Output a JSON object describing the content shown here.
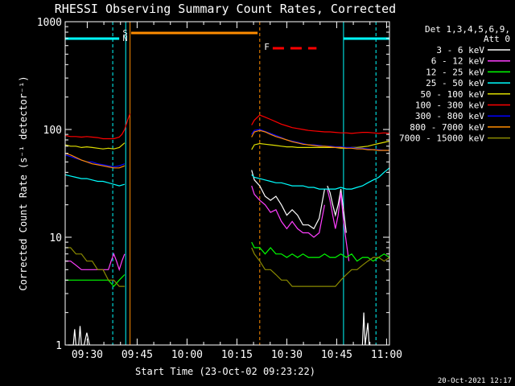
{
  "chart_data": {
    "type": "line",
    "title": "RHESSI Observing Summary Count Rates, Corrected",
    "xlabel": "Start Time (23-Oct-02 09:23:22)",
    "ylabel": "Corrected Count Rate (s⁻¹ detector⁻¹)",
    "footer": "20-Oct-2021 12:17",
    "y_scale": "log",
    "ylim": [
      1,
      1000
    ],
    "xlim_minutes": [
      0,
      60
    ],
    "x_ticks": [
      "09:30",
      "09:45",
      "10:00",
      "10:15",
      "10:30",
      "10:45",
      "11:00"
    ],
    "y_ticks": [
      "1",
      "10",
      "100",
      "1000"
    ],
    "legend": {
      "header_lines": [
        "Det 1,3,4,5,6,9,",
        "Att 0"
      ],
      "position": "right"
    },
    "flags": {
      "saa_label_s": "S",
      "saa_label_n": "N",
      "flare_label": "F"
    },
    "series": [
      {
        "name": "3 - 6 keV",
        "color": "#ffffff",
        "segments": [
          {
            "x": [
              1,
              2,
              3,
              3.5,
              4,
              5,
              5.5,
              6,
              7,
              8,
              9
            ],
            "y": [
              1,
              1,
              1,
              1.4,
              1,
              1,
              1.5,
              1,
              1,
              1.3,
              1
            ]
          },
          {
            "x": [
              69,
              70,
              72,
              74,
              76,
              78,
              80,
              82,
              84,
              86,
              88,
              90,
              92,
              94,
              96
            ],
            "y": [
              42,
              34,
              30,
              24,
              22,
              24,
              20,
              16,
              18,
              16,
              13,
              13,
              12,
              15,
              28
            ]
          },
          {
            "x": [
              97,
              98,
              99,
              100,
              101,
              102,
              103,
              104
            ],
            "y": [
              30,
              26,
              20,
              16,
              20,
              28,
              18,
              11
            ]
          },
          {
            "x": [
              110,
              110.5,
              111,
              112,
              112.5
            ],
            "y": [
              1,
              2,
              1,
              1.6,
              1
            ]
          }
        ]
      },
      {
        "name": "6 - 12 keV",
        "color": "#ff3fff",
        "segments": [
          {
            "x": [
              0,
              2,
              4,
              6,
              8,
              10,
              12,
              14,
              16,
              17,
              18,
              19,
              20,
              21,
              22
            ],
            "y": [
              6,
              6,
              5.5,
              5,
              5,
              5,
              5,
              5,
              5,
              6,
              7,
              6,
              5,
              6,
              7
            ]
          },
          {
            "x": [
              69,
              70,
              72,
              74,
              76,
              78,
              80,
              82,
              84,
              86,
              88,
              90,
              92,
              94,
              96
            ],
            "y": [
              30,
              25,
              22,
              20,
              17,
              18,
              14,
              12,
              14,
              12,
              11,
              11,
              10,
              11,
              20
            ]
          },
          {
            "x": [
              97,
              98,
              99,
              100,
              101,
              102,
              103,
              104,
              105
            ],
            "y": [
              28,
              22,
              16,
              12,
              16,
              26,
              14,
              9,
              6
            ]
          }
        ]
      },
      {
        "name": "12 - 25 keV",
        "color": "#00ff00",
        "segments": [
          {
            "x": [
              0,
              2,
              4,
              6,
              8,
              10,
              12,
              14,
              16,
              18,
              20,
              22
            ],
            "y": [
              4,
              4,
              4,
              4,
              4,
              4,
              4,
              4,
              4,
              3.5,
              4,
              4.5
            ]
          },
          {
            "x": [
              69,
              70,
              72,
              74,
              76,
              78,
              80,
              82,
              84,
              86,
              88,
              90,
              92,
              94,
              96,
              98,
              100,
              102,
              104,
              106,
              108,
              110,
              112,
              114,
              116,
              118,
              120
            ],
            "y": [
              9,
              8,
              8,
              7,
              8,
              7,
              7,
              6.5,
              7,
              6.5,
              7,
              6.5,
              6.5,
              6.5,
              7,
              6.5,
              6.5,
              7,
              6.5,
              7,
              6,
              6.5,
              6.5,
              6,
              6.5,
              7,
              6.5
            ]
          }
        ]
      },
      {
        "name": "25 - 50 keV",
        "color": "#00ffff",
        "segments": [
          {
            "x": [
              0,
              2,
              4,
              6,
              8,
              10,
              12,
              14,
              16,
              18,
              20,
              22
            ],
            "y": [
              38,
              37,
              36,
              35,
              35,
              34,
              33,
              33,
              32,
              31,
              30,
              31
            ]
          },
          {
            "x": [
              69,
              70,
              72,
              74,
              76,
              78,
              80,
              82,
              84,
              86,
              88,
              90,
              92,
              94,
              96,
              98,
              100,
              102,
              104,
              106,
              108,
              110,
              112,
              114,
              116,
              118,
              120
            ],
            "y": [
              38,
              36,
              35,
              34,
              33,
              32,
              32,
              31,
              30,
              30,
              30,
              29,
              29,
              28,
              28,
              28,
              28,
              29,
              28,
              28,
              29,
              30,
              32,
              34,
              36,
              40,
              44
            ]
          }
        ]
      },
      {
        "name": "50 - 100 keV",
        "color": "#dddd00",
        "segments": [
          {
            "x": [
              0,
              2,
              4,
              6,
              8,
              10,
              12,
              14,
              16,
              18,
              20,
              22
            ],
            "y": [
              72,
              70,
              70,
              68,
              69,
              68,
              67,
              66,
              67,
              66,
              68,
              75
            ]
          },
          {
            "x": [
              69,
              70,
              72,
              74,
              76,
              78,
              80,
              82,
              84,
              86,
              88,
              90,
              92,
              94,
              96,
              98,
              100,
              102,
              104,
              106,
              108,
              110,
              112,
              114,
              116,
              118,
              120
            ],
            "y": [
              65,
              72,
              74,
              73,
              72,
              71,
              70,
              69,
              69,
              68,
              68,
              68,
              68,
              68,
              68,
              68,
              68,
              67,
              67,
              68,
              68,
              69,
              70,
              72,
              74,
              76,
              78
            ]
          }
        ]
      },
      {
        "name": "100 - 300 keV",
        "color": "#ff0000",
        "segments": [
          {
            "x": [
              0,
              2,
              4,
              6,
              8,
              10,
              12,
              14,
              16,
              18,
              20,
              21,
              22,
              23,
              24
            ],
            "y": [
              88,
              86,
              86,
              85,
              86,
              85,
              84,
              82,
              82,
              82,
              85,
              90,
              100,
              120,
              140
            ]
          },
          {
            "x": [
              69,
              70,
              72,
              74,
              76,
              78,
              80,
              82,
              84,
              86,
              88,
              90,
              92,
              94,
              96,
              98,
              100,
              102,
              104,
              106,
              108,
              110,
              112,
              114,
              116,
              118,
              120
            ],
            "y": [
              110,
              122,
              136,
              130,
              124,
              118,
              112,
              108,
              104,
              102,
              100,
              98,
              97,
              96,
              95,
              95,
              94,
              93,
              93,
              92,
              93,
              94,
              94,
              93,
              92,
              93,
              92
            ]
          }
        ]
      },
      {
        "name": "300 - 800 keV",
        "color": "#0000ff",
        "segments": [
          {
            "x": [
              0,
              2,
              4,
              6,
              8,
              10,
              12,
              14,
              16,
              18,
              20,
              22
            ],
            "y": [
              58,
              56,
              54,
              52,
              50,
              50,
              48,
              47,
              46,
              45,
              46,
              48
            ]
          },
          {
            "x": [
              69,
              70,
              72,
              74,
              76,
              78,
              80,
              82,
              84,
              86,
              88,
              90,
              92,
              94,
              96,
              98,
              100,
              102,
              104,
              106,
              108,
              110,
              112,
              114,
              116,
              118,
              120
            ],
            "y": [
              90,
              98,
              100,
              96,
              92,
              88,
              84,
              80,
              78,
              76,
              74,
              72,
              72,
              71,
              70,
              70,
              69,
              69,
              68,
              68,
              67,
              67,
              66,
              65,
              65,
              64,
              64
            ]
          }
        ]
      },
      {
        "name": "800 - 7000 keV",
        "color": "#ff8c00",
        "segments": [
          {
            "x": [
              0,
              2,
              4,
              6,
              8,
              10,
              12,
              14,
              16,
              18,
              20,
              22
            ],
            "y": [
              60,
              58,
              55,
              52,
              50,
              48,
              47,
              46,
              45,
              44,
              44,
              46
            ]
          },
          {
            "x": [
              69,
              70,
              72,
              74,
              76,
              78,
              80,
              82,
              84,
              86,
              88,
              90,
              92,
              94,
              96,
              98,
              100,
              102,
              104,
              106,
              108,
              110,
              112,
              114,
              116,
              118,
              120
            ],
            "y": [
              85,
              95,
              98,
              95,
              90,
              86,
              83,
              80,
              77,
              75,
              73,
              72,
              71,
              70,
              70,
              69,
              68,
              68,
              67,
              67,
              66,
              66,
              65,
              65,
              64,
              64,
              64
            ]
          }
        ]
      },
      {
        "name": "7000 - 15000 keV",
        "color": "#8b8b00",
        "segments": [
          {
            "x": [
              0,
              2,
              4,
              6,
              8,
              10,
              12,
              14,
              16,
              18,
              20,
              22
            ],
            "y": [
              8,
              8,
              7,
              7,
              6,
              6,
              5,
              5,
              4,
              4,
              3.5,
              3.5
            ]
          },
          {
            "x": [
              69,
              70,
              72,
              74,
              76,
              78,
              80,
              82,
              84,
              86,
              88,
              90,
              92,
              94,
              96,
              98,
              100,
              102,
              104,
              106,
              108,
              110,
              112,
              114,
              116,
              118,
              120
            ],
            "y": [
              8,
              7,
              6,
              5,
              5,
              4.5,
              4,
              4,
              3.5,
              3.5,
              3.5,
              3.5,
              3.5,
              3.5,
              3.5,
              3.5,
              3.5,
              4,
              4.5,
              5,
              5,
              5.5,
              6,
              6.5,
              6.5,
              6,
              6.5
            ]
          }
        ]
      }
    ]
  }
}
